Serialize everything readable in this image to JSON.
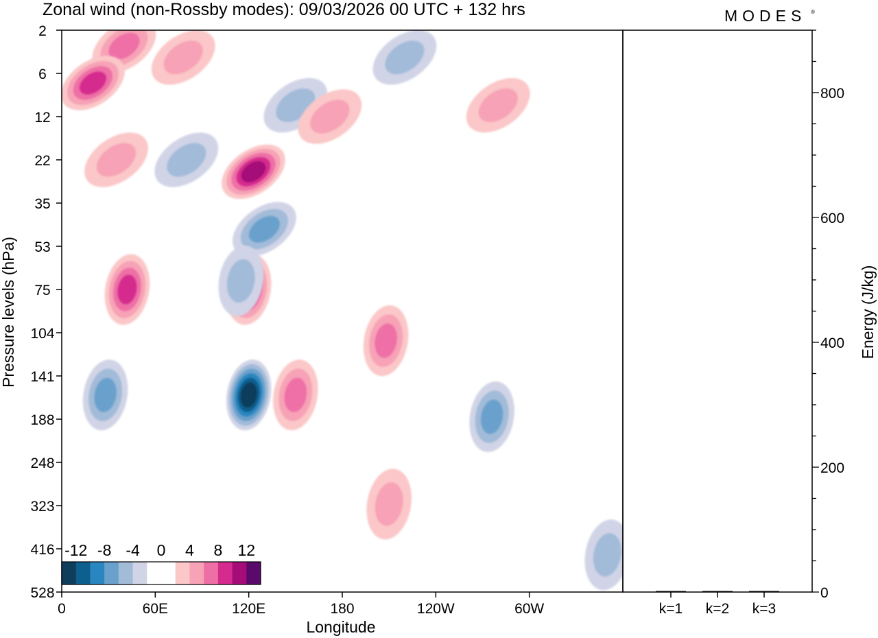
{
  "header": {
    "title": "Zonal wind (non-Rossby modes):  09/03/2026  00 UTC  + 132 hrs",
    "logo": "MODES",
    "logo_mark": "®"
  },
  "chart_data": [
    {
      "type": "heatmap",
      "xlabel": "Longitude",
      "ylabel": "Pressure levels (hPa)",
      "x_ticks": [
        "0",
        "60E",
        "120E",
        "180",
        "120W",
        "60W"
      ],
      "x_tick_degrees": [
        0,
        60,
        120,
        180,
        240,
        300
      ],
      "xlim": [
        0,
        360
      ],
      "y_ticks": [
        "2",
        "6",
        "12",
        "22",
        "35",
        "53",
        "75",
        "104",
        "141",
        "188",
        "248",
        "323",
        "416",
        "528"
      ],
      "colorbar": {
        "labels": [
          "-12",
          "-8",
          "-4",
          "0",
          "4",
          "8",
          "12"
        ],
        "colors": [
          "#0e3e5c",
          "#0d5f8e",
          "#2a86c0",
          "#6aa1cc",
          "#a2bbd9",
          "#d0d4e6",
          "#ffffff",
          "#ffffff",
          "#fbc7c8",
          "#f7a2b6",
          "#ee6fa6",
          "#d52a8e",
          "#a50c78",
          "#5a0a6a"
        ]
      },
      "structures": [
        {
          "lon": 120,
          "p_hpa": 160,
          "value": -14
        },
        {
          "lon": 123,
          "p_hpa": 25,
          "value": 10
        },
        {
          "lon": 120,
          "p_hpa": 75,
          "value": 8
        },
        {
          "lon": 42,
          "p_hpa": 75,
          "value": 8
        },
        {
          "lon": 40,
          "p_hpa": 3,
          "value": 6
        },
        {
          "lon": 20,
          "p_hpa": 7,
          "value": 8
        },
        {
          "lon": 150,
          "p_hpa": 160,
          "value": 6
        },
        {
          "lon": 208,
          "p_hpa": 110,
          "value": 6
        },
        {
          "lon": 28,
          "p_hpa": 160,
          "value": -6
        },
        {
          "lon": 276,
          "p_hpa": 185,
          "value": -6
        },
        {
          "lon": 130,
          "p_hpa": 45,
          "value": -6
        },
        {
          "lon": 220,
          "p_hpa": 4,
          "value": -4
        },
        {
          "lon": 150,
          "p_hpa": 10,
          "value": -4
        },
        {
          "lon": 80,
          "p_hpa": 22,
          "value": -4
        },
        {
          "lon": 115,
          "p_hpa": 70,
          "value": -4
        },
        {
          "lon": 172,
          "p_hpa": 12,
          "value": 4
        },
        {
          "lon": 78,
          "p_hpa": 4,
          "value": 4
        },
        {
          "lon": 280,
          "p_hpa": 10,
          "value": 4
        },
        {
          "lon": 210,
          "p_hpa": 320,
          "value": 4
        },
        {
          "lon": 35,
          "p_hpa": 22,
          "value": 4
        },
        {
          "lon": 350,
          "p_hpa": 430,
          "value": -4
        }
      ]
    },
    {
      "type": "bar",
      "ylabel": "Energy (J/kg)",
      "categories": [
        "k=1",
        "k=2",
        "k=3"
      ],
      "values": [
        1,
        1,
        1
      ],
      "y_ticks": [
        "0",
        "200",
        "400",
        "600",
        "800"
      ],
      "ylim": [
        0,
        900
      ]
    }
  ]
}
